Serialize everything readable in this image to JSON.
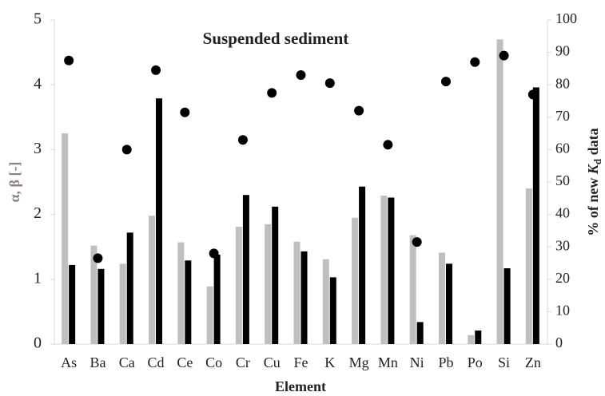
{
  "chart_data": {
    "type": "bar",
    "title": "Suspended sediment",
    "x_label": "Element",
    "y_label": "α, β [-]",
    "y2_label": [
      "% of new ",
      "K",
      "d",
      " data"
    ],
    "categories": [
      "As",
      "Ba",
      "Ca",
      "Cd",
      "Ce",
      "Co",
      "Cr",
      "Cu",
      "Fe",
      "K",
      "Mg",
      "Mn",
      "Ni",
      "Pb",
      "Po",
      "Si",
      "Zn"
    ],
    "series": [
      {
        "type": "bar",
        "color": "#bfbfbf",
        "values": [
          3.25,
          1.52,
          1.24,
          1.98,
          1.57,
          0.89,
          1.81,
          1.85,
          1.58,
          1.31,
          1.95,
          2.29,
          1.68,
          1.41,
          0.14,
          4.7,
          2.4
        ]
      },
      {
        "type": "bar",
        "color": "#000000",
        "values": [
          1.22,
          1.16,
          1.72,
          3.79,
          1.29,
          1.38,
          2.3,
          2.12,
          1.43,
          1.03,
          2.43,
          2.26,
          0.34,
          1.24,
          0.21,
          1.17,
          3.96
        ]
      },
      {
        "type": "scatter",
        "axis": "y2",
        "color": "#000000",
        "values": [
          87.5,
          26.5,
          60,
          84.5,
          71.5,
          28,
          63,
          77.5,
          83,
          80.5,
          72,
          61.5,
          31.5,
          81,
          87,
          89,
          77
        ]
      }
    ],
    "ylim": [
      0,
      5
    ],
    "yticks": [
      0,
      1,
      2,
      3,
      4,
      5
    ],
    "y2lim": [
      0,
      100
    ],
    "y2ticks": [
      0,
      10,
      20,
      30,
      40,
      50,
      60,
      70,
      80,
      90,
      100
    ],
    "grid": false
  }
}
